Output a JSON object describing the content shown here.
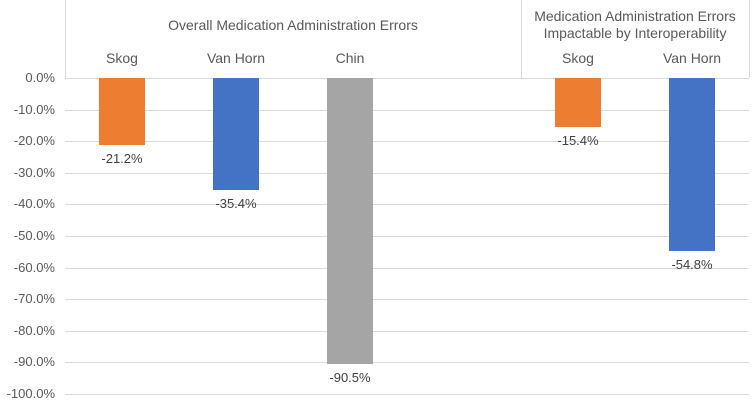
{
  "chart_data": {
    "type": "bar",
    "orientation": "vertical",
    "value_unit": "%",
    "grid": true,
    "legend": "none",
    "y_axis": {
      "min": -100,
      "max": 0,
      "step": -10,
      "ticks": [
        "0.0%",
        "-10.0%",
        "-20.0%",
        "-30.0%",
        "-40.0%",
        "-50.0%",
        "-60.0%",
        "-70.0%",
        "-80.0%",
        "-90.0%",
        "-100.0%"
      ],
      "tick_values": [
        0,
        -10,
        -20,
        -30,
        -40,
        -50,
        -60,
        -70,
        -80,
        -90,
        -100
      ]
    },
    "total_slots": 6,
    "groups": [
      {
        "title_lines": [
          "Overall Medication Administration Errors"
        ],
        "slot_span": [
          0,
          4
        ],
        "categories": [
          "Skog",
          "Van Horn",
          "Chin"
        ],
        "values": [
          -21.2,
          -35.4,
          -90.5
        ],
        "value_labels": [
          "-21.2%",
          "-35.4%",
          "-90.5%"
        ],
        "bar_colors": [
          "#ED7D31",
          "#4472C4",
          "#A5A5A5"
        ],
        "slots": [
          0,
          1,
          2
        ]
      },
      {
        "title_lines": [
          "Medication Administration Errors",
          "Impactable by Interoperability"
        ],
        "slot_span": [
          4,
          6
        ],
        "categories": [
          "Skog",
          "Van Horn"
        ],
        "values": [
          -15.4,
          -54.8
        ],
        "value_labels": [
          "-15.4%",
          "-54.8%"
        ],
        "bar_colors": [
          "#ED7D31",
          "#4472C4"
        ],
        "slots": [
          4,
          5
        ]
      }
    ],
    "colors": {
      "orange_series": "#ED7D31",
      "blue_series": "#4472C4",
      "gray_series": "#A5A5A5",
      "gridline": "#D9D9D9",
      "axis_text": "#595959",
      "data_label_text": "#404040",
      "background": "#FFFFFF"
    }
  }
}
